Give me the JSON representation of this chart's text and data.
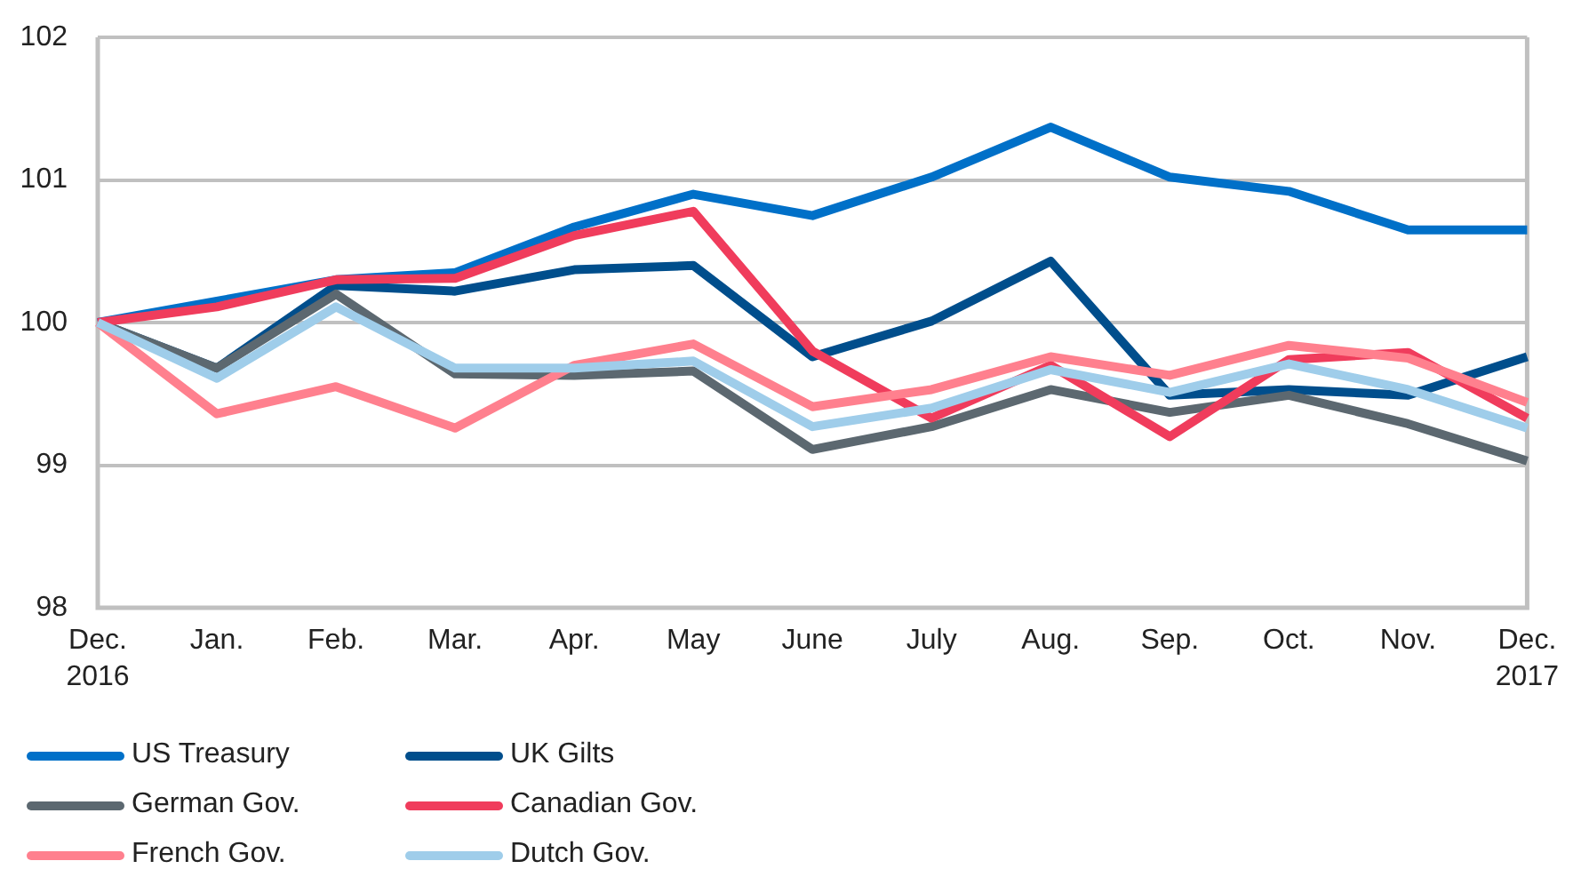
{
  "chart_data": {
    "type": "line",
    "categories": [
      "Dec.\n2016",
      "Jan.",
      "Feb.",
      "Mar.",
      "Apr.",
      "May",
      "June",
      "July",
      "Aug.",
      "Sep.",
      "Oct.",
      "Nov.",
      "Dec.\n2017"
    ],
    "series": [
      {
        "name": "US Treasury",
        "color": "#0070c8",
        "values": [
          100,
          100.15,
          100.3,
          100.35,
          100.67,
          100.9,
          100.75,
          101.02,
          101.37,
          101.02,
          100.92,
          100.65,
          100.65
        ]
      },
      {
        "name": "UK Gilts",
        "color": "#004e8c",
        "values": [
          100,
          99.68,
          100.26,
          100.22,
          100.37,
          100.4,
          99.76,
          100.01,
          100.43,
          99.49,
          99.53,
          99.49,
          99.76
        ]
      },
      {
        "name": "German Gov.",
        "color": "#5c6870",
        "values": [
          100,
          99.68,
          100.2,
          99.64,
          99.63,
          99.66,
          99.11,
          99.27,
          99.53,
          99.37,
          99.49,
          99.29,
          99.03
        ]
      },
      {
        "name": "Canadian Gov.",
        "color": "#f03c5c",
        "values": [
          100,
          100.11,
          100.3,
          100.31,
          100.61,
          100.78,
          99.8,
          99.33,
          99.7,
          99.2,
          99.74,
          99.79,
          99.33
        ]
      },
      {
        "name": "French Gov.",
        "color": "#ff808e",
        "values": [
          100,
          99.36,
          99.55,
          99.26,
          99.7,
          99.85,
          99.41,
          99.53,
          99.76,
          99.63,
          99.84,
          99.75,
          99.44
        ]
      },
      {
        "name": "Dutch Gov.",
        "color": "#9fcdea",
        "values": [
          100,
          99.61,
          100.11,
          99.68,
          99.68,
          99.73,
          99.27,
          99.4,
          99.67,
          99.51,
          99.71,
          99.53,
          99.26
        ]
      }
    ],
    "ylim": [
      98,
      102
    ],
    "yticks": [
      98,
      99,
      100,
      101,
      102
    ],
    "grid": "y",
    "legend": "bottom left",
    "marker": "none"
  }
}
